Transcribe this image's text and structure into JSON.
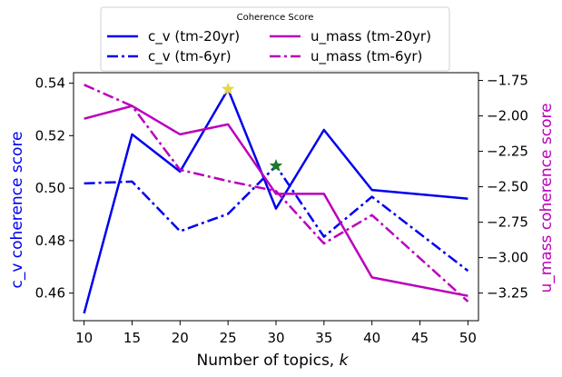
{
  "chart_data": {
    "type": "line",
    "x": [
      10,
      15,
      20,
      25,
      30,
      35,
      40,
      50
    ],
    "xlabel": "Number of topics, ",
    "xlabel_var": "k",
    "xticks": [
      10,
      15,
      20,
      25,
      30,
      35,
      40,
      45,
      50
    ],
    "xlim": [
      8.9,
      51.1
    ],
    "left_axis": {
      "label": "c_v coherence score",
      "color": "#0000ee",
      "ylim": [
        0.4495,
        0.544
      ],
      "ticks": [
        0.46,
        0.48,
        0.5,
        0.52,
        0.54
      ],
      "tick_labels": [
        "0.46",
        "0.48",
        "0.50",
        "0.52",
        "0.54"
      ]
    },
    "right_axis": {
      "label": "u_mass coherence score",
      "color": "#bb00bb",
      "ylim": [
        -3.445,
        -1.695
      ],
      "ticks": [
        -1.75,
        -2.0,
        -2.25,
        -2.5,
        -2.75,
        -3.0,
        -3.25
      ],
      "tick_labels": [
        "−1.75",
        "−2.00",
        "−2.25",
        "−2.50",
        "−2.75",
        "−3.00",
        "−3.25"
      ]
    },
    "series": [
      {
        "name": "c_v (tm-20yr)",
        "axis": "left",
        "color": "#0000ee",
        "dash": "solid",
        "values": [
          0.4523,
          0.5205,
          0.5063,
          0.5377,
          0.4922,
          0.5222,
          0.4993,
          0.496
        ]
      },
      {
        "name": "c_v (tm-6yr)",
        "axis": "left",
        "color": "#0000ee",
        "dash": "dashdot",
        "values": [
          0.5018,
          0.5025,
          0.4836,
          0.4902,
          0.5085,
          0.4815,
          0.4967,
          0.4685
        ]
      },
      {
        "name": "u_mass (tm-20yr)",
        "axis": "right",
        "color": "#bb00bb",
        "dash": "solid",
        "values": [
          -2.02,
          -1.93,
          -2.13,
          -2.06,
          -2.55,
          -2.55,
          -3.14,
          -3.27
        ]
      },
      {
        "name": "u_mass (tm-6yr)",
        "axis": "right",
        "color": "#bb00bb",
        "dash": "dashdot",
        "values": [
          -1.78,
          -1.93,
          -2.38,
          -2.46,
          -2.53,
          -2.9,
          -2.7,
          -3.31
        ]
      }
    ],
    "markers": [
      {
        "x": 25,
        "y": 0.5377,
        "axis": "left",
        "shape": "star",
        "color": "#e6d64a"
      },
      {
        "x": 30,
        "y": 0.5085,
        "axis": "left",
        "shape": "star",
        "color": "#1a7a2a"
      }
    ],
    "legend": {
      "title": "Coherence Score",
      "placement": "top-center",
      "columns": 2
    }
  }
}
